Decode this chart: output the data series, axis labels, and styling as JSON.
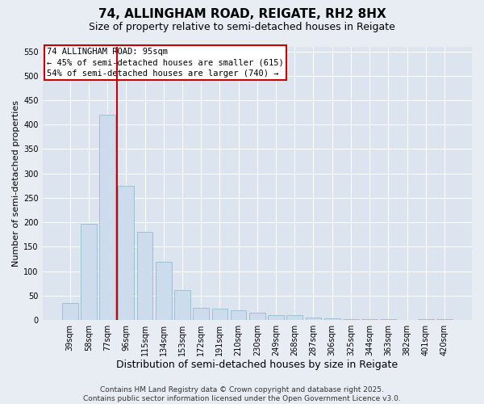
{
  "title1": "74, ALLINGHAM ROAD, REIGATE, RH2 8HX",
  "title2": "Size of property relative to semi-detached houses in Reigate",
  "xlabel": "Distribution of semi-detached houses by size in Reigate",
  "ylabel": "Number of semi-detached properties",
  "categories": [
    "39sqm",
    "58sqm",
    "77sqm",
    "96sqm",
    "115sqm",
    "134sqm",
    "153sqm",
    "172sqm",
    "191sqm",
    "210sqm",
    "230sqm",
    "249sqm",
    "268sqm",
    "287sqm",
    "306sqm",
    "325sqm",
    "344sqm",
    "363sqm",
    "382sqm",
    "401sqm",
    "420sqm"
  ],
  "values": [
    35,
    197,
    420,
    275,
    180,
    120,
    62,
    25,
    23,
    20,
    15,
    10,
    10,
    5,
    3,
    2,
    1,
    1,
    0,
    1,
    1
  ],
  "bar_color": "#ccdcec",
  "bar_edge_color": "#88b4cc",
  "vline_position": 2.5,
  "vline_color": "#cc0000",
  "annotation_text": "74 ALLINGHAM ROAD: 95sqm\n← 45% of semi-detached houses are smaller (615)\n54% of semi-detached houses are larger (740) →",
  "annotation_box_edge_color": "#cc0000",
  "background_color": "#e8edf4",
  "plot_bg_color": "#dce4ef",
  "ylim_max": 560,
  "yticks": [
    0,
    50,
    100,
    150,
    200,
    250,
    300,
    350,
    400,
    450,
    500,
    550
  ],
  "footer_line1": "Contains HM Land Registry data © Crown copyright and database right 2025.",
  "footer_line2": "Contains public sector information licensed under the Open Government Licence v3.0.",
  "title1_fontsize": 11,
  "title2_fontsize": 9,
  "xlabel_fontsize": 9,
  "ylabel_fontsize": 8,
  "tick_fontsize": 7,
  "annotation_fontsize": 7.5,
  "footer_fontsize": 6.5
}
